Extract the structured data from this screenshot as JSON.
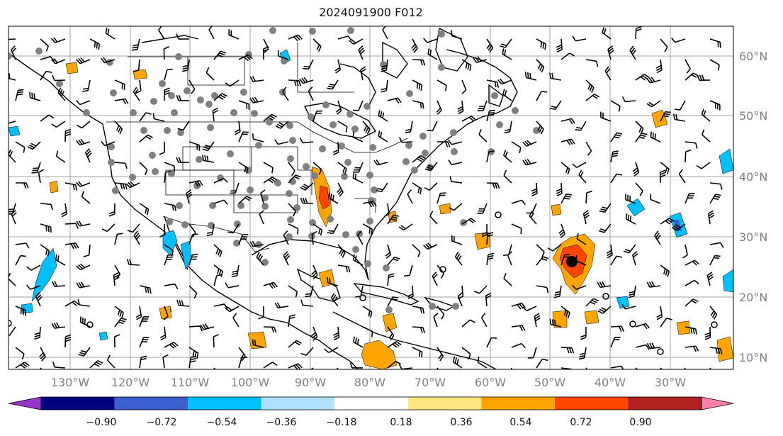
{
  "title": "2024091900 F012",
  "lat_ticks": [
    "60°N",
    "50°N",
    "40°N",
    "30°N",
    "20°N",
    "10°N"
  ],
  "lon_ticks": [
    "130°W",
    "120°W",
    "110°W",
    "100°W",
    "90°W",
    "80°W",
    "70°W",
    "60°W",
    "50°W",
    "40°W",
    "30°W"
  ],
  "colorbar": {
    "labels": [
      "−0.90",
      "−0.72",
      "−0.54",
      "−0.36",
      "−0.18",
      "0.18",
      "0.36",
      "0.54",
      "0.72",
      "0.90"
    ],
    "colors": [
      "#9933cc",
      "#000080",
      "#3a5fcd",
      "#00bfff",
      "#b0e0ff",
      "#ffffff",
      "#ffe680",
      "#ffa500",
      "#ff4500",
      "#b22222",
      "#ff82ab"
    ]
  },
  "legend_colors": {
    "negative_fill": "#00bfff",
    "positive_fill": "#ffa500",
    "strong_positive": "#ff4500",
    "station_dot": "#808080",
    "storm_center": "#000000"
  }
}
